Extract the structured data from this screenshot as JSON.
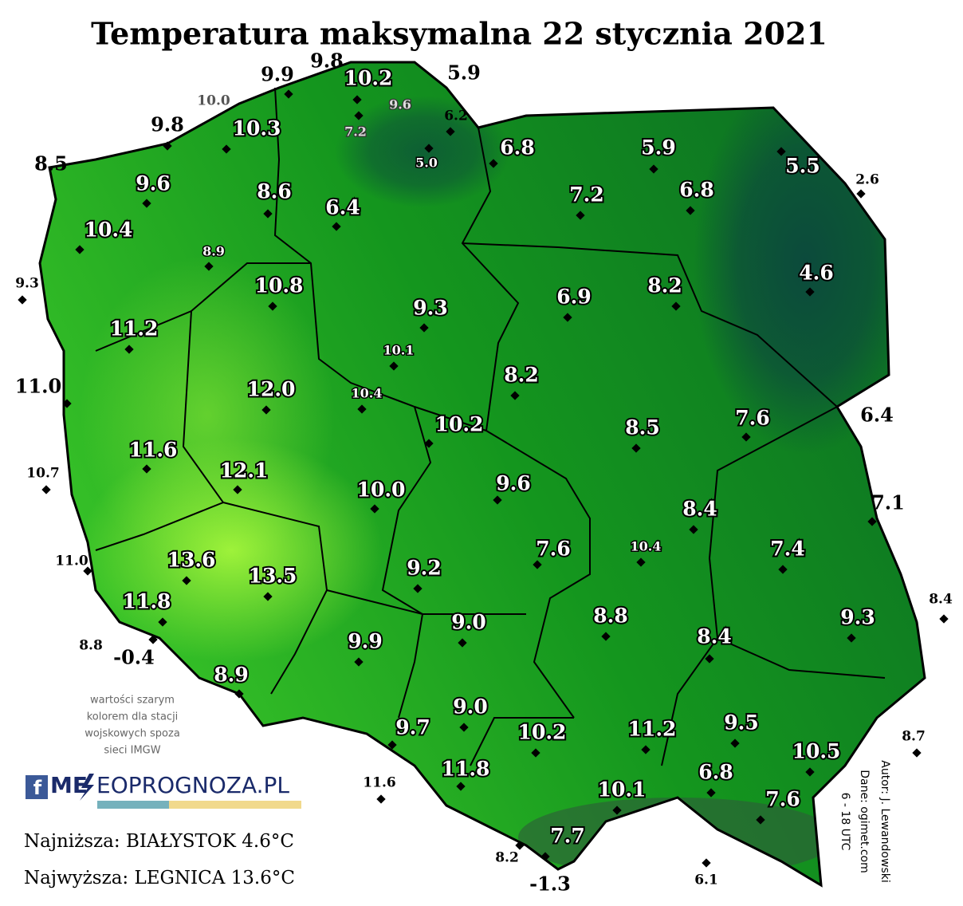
{
  "title": "Temperatura maksymalna 22 stycznia 2021",
  "stations": [
    "9.9",
    "9.8",
    "10.2",
    "5.9",
    "10.0",
    "9.6",
    "6.2",
    "7.2",
    "9.8",
    "10.3",
    "5.0",
    "6.8",
    "5.9",
    "5.5",
    "2.6",
    "8.5",
    "9.6",
    "8.6",
    "7.2",
    "6.8",
    "6.4",
    "10.4",
    "8.9",
    "4.6",
    "9.3",
    "10.8",
    "8.2",
    "6.9",
    "9.3",
    "11.2",
    "10.1",
    "8.2",
    "11.0",
    "12.0",
    "10.4",
    "7.6",
    "6.4",
    "10.2",
    "8.5",
    "11.6",
    "12.1",
    "10.7",
    "9.6",
    "10.0",
    "7.1",
    "8.4",
    "10.4",
    "7.6",
    "7.4",
    "11.0",
    "13.6",
    "13.5",
    "9.2",
    "11.8",
    "8.4",
    "9.3",
    "8.8",
    "9.0",
    "8.4",
    "9.9",
    "8.8",
    "-0.4",
    "8.9",
    "9.0",
    "9.7",
    "10.2",
    "11.2",
    "9.5",
    "8.7",
    "10.5",
    "11.6",
    "11.8",
    "6.8",
    "10.1",
    "7.6",
    "7.7",
    "8.2",
    "6.1",
    "-1.3"
  ],
  "note": [
    "wartości szarym",
    "kolorem dla stacji",
    "wojskowych spoza",
    "sieci IMGW"
  ],
  "logo": [
    "ME",
    "EOPROGNOZA.PL"
  ],
  "lowest": "Najniższa: BIAŁYSTOK 4.6°C",
  "highest": "Najwyższa: LEGNICA 13.6°C",
  "credits": [
    "Autor: J. Lewandowski",
    "Dane: ogimet.com",
    "6 - 18 UTC"
  ]
}
